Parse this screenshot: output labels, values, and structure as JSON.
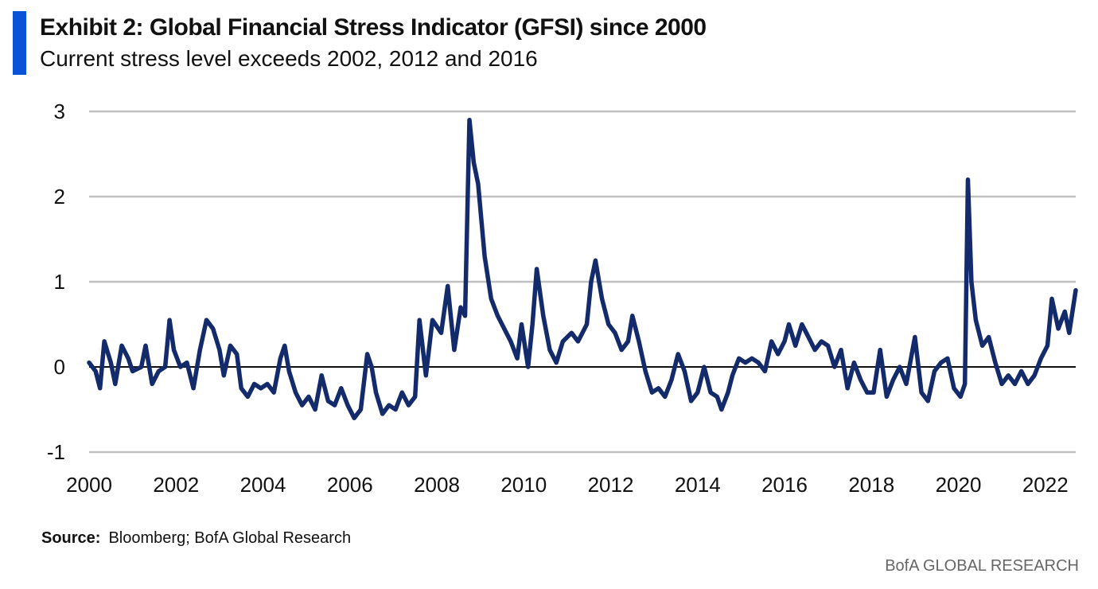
{
  "header": {
    "title": "Exhibit 2: Global Financial Stress Indicator (GFSI) since 2000",
    "subtitle": "Current stress level exceeds 2002, 2012 and 2016"
  },
  "footer": {
    "source_label": "Source:",
    "source_text": "Bloomberg; BofA Global Research",
    "brand": "BofA GLOBAL RESEARCH"
  },
  "colors": {
    "accent": "#0a52d6",
    "series": "#132a6b",
    "grid": "#c0c0c0",
    "zero_line": "#111111"
  },
  "chart_data": {
    "type": "line",
    "title": "",
    "xlabel": "",
    "ylabel": "",
    "xlim": [
      2000,
      2022.7
    ],
    "ylim": [
      -1,
      3
    ],
    "x_ticks": [
      "2000",
      "2002",
      "2004",
      "2006",
      "2008",
      "2010",
      "2012",
      "2014",
      "2016",
      "2018",
      "2020",
      "2022"
    ],
    "y_ticks": [
      "-1",
      "0",
      "1",
      "2",
      "3"
    ],
    "grid": "horizontal",
    "legend": "none",
    "series": [
      {
        "values": [
          [
            2000.0,
            0.05
          ],
          [
            2000.15,
            -0.05
          ],
          [
            2000.25,
            -0.25
          ],
          [
            2000.35,
            0.3
          ],
          [
            2000.5,
            0.05
          ],
          [
            2000.6,
            -0.2
          ],
          [
            2000.75,
            0.25
          ],
          [
            2000.9,
            0.1
          ],
          [
            2001.0,
            -0.05
          ],
          [
            2001.2,
            0.0
          ],
          [
            2001.3,
            0.25
          ],
          [
            2001.45,
            -0.2
          ],
          [
            2001.6,
            -0.05
          ],
          [
            2001.75,
            0.0
          ],
          [
            2001.85,
            0.55
          ],
          [
            2001.95,
            0.2
          ],
          [
            2002.1,
            0.0
          ],
          [
            2002.25,
            0.05
          ],
          [
            2002.4,
            -0.25
          ],
          [
            2002.55,
            0.2
          ],
          [
            2002.7,
            0.55
          ],
          [
            2002.85,
            0.45
          ],
          [
            2003.0,
            0.2
          ],
          [
            2003.1,
            -0.1
          ],
          [
            2003.25,
            0.25
          ],
          [
            2003.4,
            0.15
          ],
          [
            2003.5,
            -0.25
          ],
          [
            2003.65,
            -0.35
          ],
          [
            2003.8,
            -0.2
          ],
          [
            2003.95,
            -0.25
          ],
          [
            2004.1,
            -0.2
          ],
          [
            2004.25,
            -0.3
          ],
          [
            2004.4,
            0.1
          ],
          [
            2004.5,
            0.25
          ],
          [
            2004.6,
            -0.05
          ],
          [
            2004.75,
            -0.3
          ],
          [
            2004.9,
            -0.45
          ],
          [
            2005.05,
            -0.35
          ],
          [
            2005.2,
            -0.5
          ],
          [
            2005.35,
            -0.1
          ],
          [
            2005.5,
            -0.4
          ],
          [
            2005.65,
            -0.45
          ],
          [
            2005.8,
            -0.25
          ],
          [
            2005.95,
            -0.45
          ],
          [
            2006.1,
            -0.6
          ],
          [
            2006.25,
            -0.5
          ],
          [
            2006.4,
            0.15
          ],
          [
            2006.5,
            0.0
          ],
          [
            2006.6,
            -0.3
          ],
          [
            2006.75,
            -0.55
          ],
          [
            2006.9,
            -0.45
          ],
          [
            2007.05,
            -0.5
          ],
          [
            2007.2,
            -0.3
          ],
          [
            2007.35,
            -0.45
          ],
          [
            2007.5,
            -0.35
          ],
          [
            2007.6,
            0.55
          ],
          [
            2007.75,
            -0.1
          ],
          [
            2007.9,
            0.55
          ],
          [
            2008.1,
            0.4
          ],
          [
            2008.25,
            0.95
          ],
          [
            2008.4,
            0.2
          ],
          [
            2008.55,
            0.7
          ],
          [
            2008.65,
            0.6
          ],
          [
            2008.75,
            2.9
          ],
          [
            2008.85,
            2.4
          ],
          [
            2008.95,
            2.15
          ],
          [
            2009.1,
            1.3
          ],
          [
            2009.25,
            0.8
          ],
          [
            2009.4,
            0.6
          ],
          [
            2009.55,
            0.45
          ],
          [
            2009.7,
            0.3
          ],
          [
            2009.85,
            0.1
          ],
          [
            2009.95,
            0.5
          ],
          [
            2010.1,
            0.0
          ],
          [
            2010.2,
            0.5
          ],
          [
            2010.3,
            1.15
          ],
          [
            2010.45,
            0.6
          ],
          [
            2010.6,
            0.2
          ],
          [
            2010.75,
            0.05
          ],
          [
            2010.9,
            0.3
          ],
          [
            2011.1,
            0.4
          ],
          [
            2011.25,
            0.3
          ],
          [
            2011.45,
            0.5
          ],
          [
            2011.55,
            1.0
          ],
          [
            2011.65,
            1.25
          ],
          [
            2011.8,
            0.8
          ],
          [
            2011.95,
            0.5
          ],
          [
            2012.1,
            0.4
          ],
          [
            2012.25,
            0.2
          ],
          [
            2012.4,
            0.3
          ],
          [
            2012.5,
            0.6
          ],
          [
            2012.65,
            0.3
          ],
          [
            2012.8,
            -0.05
          ],
          [
            2012.95,
            -0.3
          ],
          [
            2013.1,
            -0.25
          ],
          [
            2013.25,
            -0.35
          ],
          [
            2013.4,
            -0.15
          ],
          [
            2013.55,
            0.15
          ],
          [
            2013.7,
            -0.05
          ],
          [
            2013.85,
            -0.4
          ],
          [
            2014.0,
            -0.3
          ],
          [
            2014.15,
            0.0
          ],
          [
            2014.3,
            -0.3
          ],
          [
            2014.45,
            -0.35
          ],
          [
            2014.55,
            -0.5
          ],
          [
            2014.7,
            -0.3
          ],
          [
            2014.8,
            -0.1
          ],
          [
            2014.95,
            0.1
          ],
          [
            2015.1,
            0.05
          ],
          [
            2015.25,
            0.1
          ],
          [
            2015.4,
            0.05
          ],
          [
            2015.55,
            -0.05
          ],
          [
            2015.7,
            0.3
          ],
          [
            2015.85,
            0.15
          ],
          [
            2016.0,
            0.3
          ],
          [
            2016.1,
            0.5
          ],
          [
            2016.25,
            0.25
          ],
          [
            2016.4,
            0.5
          ],
          [
            2016.55,
            0.35
          ],
          [
            2016.7,
            0.2
          ],
          [
            2016.85,
            0.3
          ],
          [
            2017.0,
            0.25
          ],
          [
            2017.15,
            0.0
          ],
          [
            2017.3,
            0.2
          ],
          [
            2017.45,
            -0.25
          ],
          [
            2017.6,
            0.05
          ],
          [
            2017.75,
            -0.15
          ],
          [
            2017.9,
            -0.3
          ],
          [
            2018.05,
            -0.3
          ],
          [
            2018.2,
            0.2
          ],
          [
            2018.35,
            -0.35
          ],
          [
            2018.5,
            -0.15
          ],
          [
            2018.65,
            0.0
          ],
          [
            2018.8,
            -0.2
          ],
          [
            2019.0,
            0.35
          ],
          [
            2019.15,
            -0.3
          ],
          [
            2019.3,
            -0.4
          ],
          [
            2019.45,
            -0.05
          ],
          [
            2019.6,
            0.05
          ],
          [
            2019.75,
            0.1
          ],
          [
            2019.9,
            -0.25
          ],
          [
            2020.05,
            -0.35
          ],
          [
            2020.15,
            -0.2
          ],
          [
            2020.22,
            2.2
          ],
          [
            2020.3,
            1.0
          ],
          [
            2020.4,
            0.55
          ],
          [
            2020.55,
            0.25
          ],
          [
            2020.7,
            0.35
          ],
          [
            2020.85,
            0.05
          ],
          [
            2021.0,
            -0.2
          ],
          [
            2021.15,
            -0.1
          ],
          [
            2021.3,
            -0.2
          ],
          [
            2021.45,
            -0.05
          ],
          [
            2021.6,
            -0.2
          ],
          [
            2021.75,
            -0.1
          ],
          [
            2021.9,
            0.1
          ],
          [
            2022.05,
            0.25
          ],
          [
            2022.15,
            0.8
          ],
          [
            2022.3,
            0.45
          ],
          [
            2022.45,
            0.65
          ],
          [
            2022.55,
            0.4
          ],
          [
            2022.7,
            0.9
          ]
        ]
      }
    ]
  }
}
